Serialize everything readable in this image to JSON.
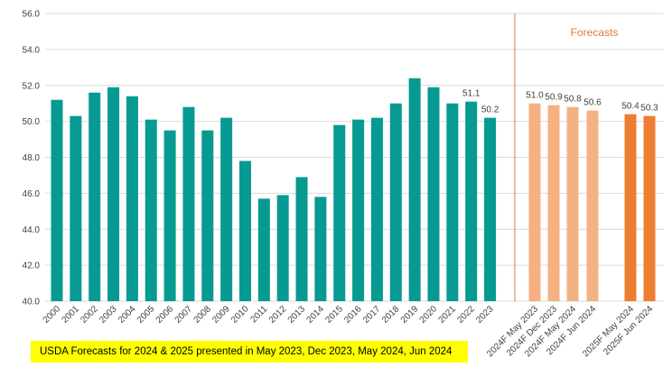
{
  "chart_data": {
    "type": "bar",
    "title": "",
    "xlabel": "",
    "ylabel": "",
    "ylim": [
      40.0,
      56.0
    ],
    "yticks": [
      "40.0",
      "42.0",
      "44.0",
      "46.0",
      "48.0",
      "50.0",
      "52.0",
      "54.0",
      "56.0"
    ],
    "grid": true,
    "legend": "none",
    "colors": {
      "historical": "#069a92",
      "forecast_2024": "#f4b183",
      "forecast_2025": "#ed7d31",
      "divider": "#e07b39",
      "grid": "#d9d9d9"
    },
    "categories": [
      "2000",
      "2001",
      "2002",
      "2003",
      "2004",
      "2005",
      "2006",
      "2007",
      "2008",
      "2009",
      "2010",
      "2011",
      "2012",
      "2013",
      "2014",
      "2015",
      "2016",
      "2017",
      "2018",
      "2019",
      "2020",
      "2021",
      "2022",
      "2023",
      "2024F May 2023",
      "2024F Dec 2023",
      "2024F May 2024",
      "2024F Jun 2024",
      "2025F May 2024",
      "2025F Jun 2024"
    ],
    "values": [
      51.2,
      50.3,
      51.6,
      51.9,
      51.4,
      50.1,
      49.5,
      50.8,
      49.5,
      50.2,
      47.8,
      45.7,
      45.9,
      46.9,
      45.8,
      49.8,
      50.1,
      50.2,
      51.0,
      52.4,
      51.9,
      51.0,
      51.1,
      50.2,
      51.0,
      50.9,
      50.8,
      50.6,
      50.4,
      50.3
    ],
    "groups": [
      "historical",
      "historical",
      "historical",
      "historical",
      "historical",
      "historical",
      "historical",
      "historical",
      "historical",
      "historical",
      "historical",
      "historical",
      "historical",
      "historical",
      "historical",
      "historical",
      "historical",
      "historical",
      "historical",
      "historical",
      "historical",
      "historical",
      "historical",
      "historical",
      "forecast_2024",
      "forecast_2024",
      "forecast_2024",
      "forecast_2024",
      "forecast_2025",
      "forecast_2025"
    ],
    "data_labels": [
      "",
      "",
      "",
      "",
      "",
      "",
      "",
      "",
      "",
      "",
      "",
      "",
      "",
      "",
      "",
      "",
      "",
      "",
      "",
      "",
      "",
      "",
      "51.1",
      "50.2",
      "51.0",
      "50.9",
      "50.8",
      "50.6",
      "50.4",
      "50.3"
    ],
    "annotations": [
      "Forecasts"
    ]
  },
  "footnote": "USDA Forecasts for 2024 & 2025 presented in May 2023,  Dec 2023,  May 2024,  Jun 2024"
}
